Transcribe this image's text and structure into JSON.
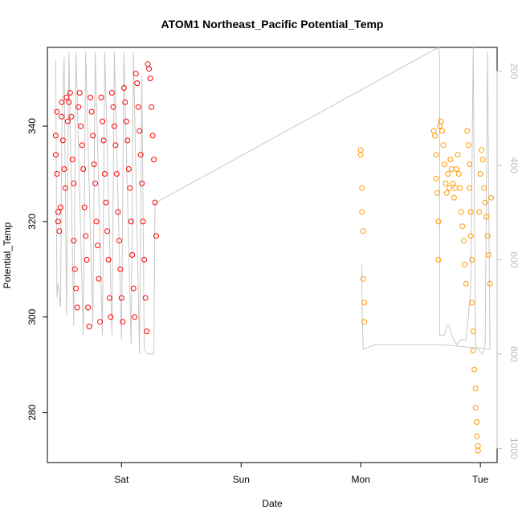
{
  "chart_data": {
    "type": "scatter",
    "title": "ATOM1 Northeast_Pacific Potential_Temp",
    "xlabel": "Date",
    "ylabel": "Potential_Temp",
    "x_unit": "days since Fri 00:00",
    "xlim": [
      0.38,
      4.14
    ],
    "ylim": [
      269.5,
      356.5
    ],
    "x_ticks": [
      {
        "x": 1,
        "label": "Sat"
      },
      {
        "x": 2,
        "label": "Sun"
      },
      {
        "x": 3,
        "label": "Mon"
      },
      {
        "x": 4,
        "label": "Tue"
      }
    ],
    "y_ticks": [
      280,
      300,
      320,
      340
    ],
    "y2_ticks": [
      200,
      400,
      600,
      800,
      1000
    ],
    "y2_lim": [
      1030,
      150
    ],
    "grid": false,
    "colors": {
      "series1": "#ff0000",
      "series2": "#ff9900",
      "depth_line": "#c8c8c8",
      "right_axis": "#bebebe"
    },
    "series": [
      {
        "points": [
          [
            0.45,
            334
          ],
          [
            0.45,
            338
          ],
          [
            0.46,
            343
          ],
          [
            0.46,
            330
          ],
          [
            0.47,
            320
          ],
          [
            0.47,
            322
          ],
          [
            0.48,
            318
          ],
          [
            0.49,
            323
          ],
          [
            0.5,
            345
          ],
          [
            0.5,
            342
          ],
          [
            0.51,
            337
          ],
          [
            0.52,
            331
          ],
          [
            0.53,
            327
          ],
          [
            0.54,
            346
          ],
          [
            0.55,
            341
          ],
          [
            0.56,
            345
          ],
          [
            0.57,
            347
          ],
          [
            0.58,
            342
          ],
          [
            0.59,
            333
          ],
          [
            0.6,
            328
          ],
          [
            0.6,
            316
          ],
          [
            0.61,
            310
          ],
          [
            0.62,
            306
          ],
          [
            0.63,
            302
          ],
          [
            0.64,
            344
          ],
          [
            0.65,
            347
          ],
          [
            0.66,
            340
          ],
          [
            0.67,
            336
          ],
          [
            0.68,
            331
          ],
          [
            0.69,
            323
          ],
          [
            0.7,
            317
          ],
          [
            0.71,
            312
          ],
          [
            0.72,
            302
          ],
          [
            0.73,
            298
          ],
          [
            0.74,
            346
          ],
          [
            0.75,
            343
          ],
          [
            0.76,
            338
          ],
          [
            0.77,
            332
          ],
          [
            0.78,
            328
          ],
          [
            0.79,
            320
          ],
          [
            0.8,
            315
          ],
          [
            0.81,
            308
          ],
          [
            0.82,
            299
          ],
          [
            0.83,
            346
          ],
          [
            0.84,
            341
          ],
          [
            0.85,
            337
          ],
          [
            0.86,
            330
          ],
          [
            0.87,
            324
          ],
          [
            0.88,
            318
          ],
          [
            0.89,
            312
          ],
          [
            0.9,
            304
          ],
          [
            0.91,
            300
          ],
          [
            0.92,
            347
          ],
          [
            0.93,
            344
          ],
          [
            0.94,
            340
          ],
          [
            0.95,
            336
          ],
          [
            0.96,
            330
          ],
          [
            0.97,
            322
          ],
          [
            0.98,
            316
          ],
          [
            0.99,
            310
          ],
          [
            1.0,
            304
          ],
          [
            1.01,
            299
          ],
          [
            1.02,
            348
          ],
          [
            1.03,
            345
          ],
          [
            1.04,
            341
          ],
          [
            1.05,
            337
          ],
          [
            1.06,
            331
          ],
          [
            1.07,
            327
          ],
          [
            1.08,
            320
          ],
          [
            1.09,
            313
          ],
          [
            1.1,
            306
          ],
          [
            1.11,
            300
          ],
          [
            1.12,
            351
          ],
          [
            1.13,
            349
          ],
          [
            1.14,
            344
          ],
          [
            1.15,
            339
          ],
          [
            1.16,
            334
          ],
          [
            1.17,
            328
          ],
          [
            1.18,
            320
          ],
          [
            1.19,
            312
          ],
          [
            1.2,
            304
          ],
          [
            1.21,
            297
          ],
          [
            1.22,
            353
          ],
          [
            1.23,
            352
          ],
          [
            1.24,
            350
          ],
          [
            1.25,
            344
          ],
          [
            1.26,
            338
          ],
          [
            1.27,
            333
          ],
          [
            1.28,
            324
          ],
          [
            1.29,
            317
          ]
        ]
      },
      {
        "points": [
          [
            3.0,
            335
          ],
          [
            3.0,
            334
          ],
          [
            3.01,
            327
          ],
          [
            3.01,
            322
          ],
          [
            3.02,
            318
          ],
          [
            3.02,
            308
          ],
          [
            3.03,
            303
          ],
          [
            3.03,
            299
          ],
          [
            3.61,
            339
          ],
          [
            3.62,
            338
          ],
          [
            3.63,
            334
          ],
          [
            3.63,
            329
          ],
          [
            3.64,
            326
          ],
          [
            3.65,
            320
          ],
          [
            3.65,
            312
          ],
          [
            3.66,
            340
          ],
          [
            3.67,
            341
          ],
          [
            3.68,
            339
          ],
          [
            3.69,
            336
          ],
          [
            3.7,
            332
          ],
          [
            3.71,
            328
          ],
          [
            3.72,
            326
          ],
          [
            3.73,
            330
          ],
          [
            3.74,
            327
          ],
          [
            3.75,
            333
          ],
          [
            3.76,
            331
          ],
          [
            3.77,
            328
          ],
          [
            3.78,
            325
          ],
          [
            3.79,
            327
          ],
          [
            3.8,
            331
          ],
          [
            3.81,
            334
          ],
          [
            3.82,
            330
          ],
          [
            3.83,
            327
          ],
          [
            3.84,
            322
          ],
          [
            3.85,
            319
          ],
          [
            3.86,
            316
          ],
          [
            3.87,
            311
          ],
          [
            3.88,
            307
          ],
          [
            3.89,
            339
          ],
          [
            3.9,
            336
          ],
          [
            3.91,
            332
          ],
          [
            3.91,
            327
          ],
          [
            3.92,
            322
          ],
          [
            3.92,
            317
          ],
          [
            3.93,
            312
          ],
          [
            3.93,
            303
          ],
          [
            3.94,
            297
          ],
          [
            3.94,
            293
          ],
          [
            3.95,
            289
          ],
          [
            3.96,
            285
          ],
          [
            3.96,
            281
          ],
          [
            3.97,
            278
          ],
          [
            3.97,
            275
          ],
          [
            3.98,
            273
          ],
          [
            3.98,
            272
          ],
          [
            3.99,
            322
          ],
          [
            4.0,
            330
          ],
          [
            4.01,
            335
          ],
          [
            4.02,
            333
          ],
          [
            4.03,
            327
          ],
          [
            4.04,
            324
          ],
          [
            4.05,
            321
          ],
          [
            4.06,
            317
          ],
          [
            4.07,
            313
          ],
          [
            4.08,
            307
          ],
          [
            4.09,
            325
          ]
        ]
      }
    ],
    "depth_line": [
      [
        0.45,
        178
      ],
      [
        0.46,
        680
      ],
      [
        0.47,
        650
      ],
      [
        0.49,
        700
      ],
      [
        0.5,
        330
      ],
      [
        0.52,
        170
      ],
      [
        0.54,
        720
      ],
      [
        0.56,
        160
      ],
      [
        0.6,
        740
      ],
      [
        0.62,
        160
      ],
      [
        0.68,
        760
      ],
      [
        0.7,
        160
      ],
      [
        0.76,
        740
      ],
      [
        0.78,
        160
      ],
      [
        0.84,
        760
      ],
      [
        0.86,
        160
      ],
      [
        0.92,
        760
      ],
      [
        0.94,
        160
      ],
      [
        1.0,
        770
      ],
      [
        1.02,
        160
      ],
      [
        1.08,
        780
      ],
      [
        1.1,
        160
      ],
      [
        1.15,
        800
      ],
      [
        1.17,
        210
      ],
      [
        1.19,
        790
      ],
      [
        1.22,
        800
      ],
      [
        1.27,
        800
      ],
      [
        1.28,
        480
      ],
      [
        3.65,
        150
      ],
      [
        3.66,
        170
      ],
      [
        3.66,
        760
      ],
      [
        3.7,
        760
      ],
      [
        3.72,
        740
      ],
      [
        3.74,
        740
      ],
      [
        3.76,
        760
      ],
      [
        3.8,
        780
      ],
      [
        3.84,
        770
      ],
      [
        3.86,
        770
      ],
      [
        3.88,
        770
      ],
      [
        3.9,
        720
      ],
      [
        3.92,
        660
      ],
      [
        3.94,
        150
      ],
      [
        3.96,
        780
      ],
      [
        3.98,
        790
      ],
      [
        4.02,
        800
      ],
      [
        4.04,
        780
      ],
      [
        4.06,
        160
      ],
      [
        4.08,
        790
      ],
      [
        3.68,
        780
      ],
      [
        3.12,
        780
      ],
      [
        3.02,
        790
      ],
      [
        3.01,
        690
      ],
      [
        3.01,
        610
      ]
    ]
  }
}
